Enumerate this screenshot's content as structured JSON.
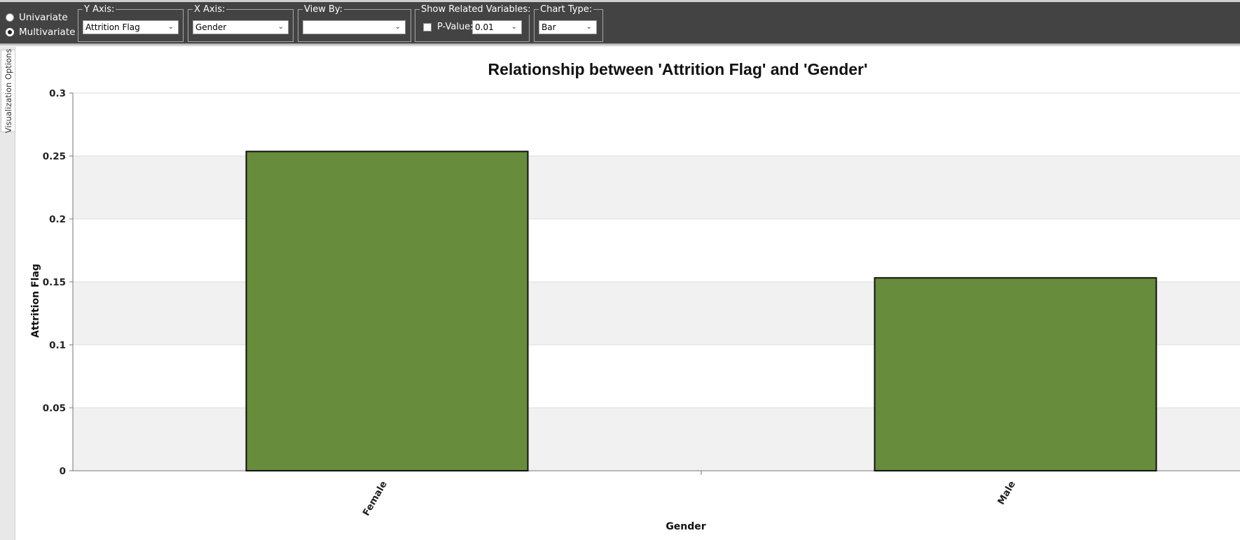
{
  "toolbar": {
    "mode_options": [
      {
        "label": "Univariate",
        "selected": false
      },
      {
        "label": "Multivariate",
        "selected": true
      }
    ],
    "y_axis": {
      "label": "Y Axis:",
      "value": "Attrition Flag"
    },
    "x_axis": {
      "label": "X Axis:",
      "value": "Gender"
    },
    "view_by": {
      "label": "View By:",
      "value": ""
    },
    "related": {
      "label": "Show Related Variables:",
      "checked": false,
      "pvalue_label": "P-Value:",
      "pvalue": "0.01"
    },
    "chart_type": {
      "label": "Chart Type:",
      "value": "Bar"
    }
  },
  "side_tab": {
    "label": "Visualization Options"
  },
  "colors": {
    "toolbar_bg": "#434343",
    "bar_fill": "#668c3c",
    "bar_stroke": "#111111",
    "band": "#f1f1f1"
  },
  "chart_data": {
    "type": "bar",
    "title": "Relationship between 'Attrition Flag' and 'Gender'",
    "xlabel": "Gender",
    "ylabel": "Attrition Flag",
    "categories": [
      "Female",
      "Male"
    ],
    "values": [
      0.2536,
      0.1532
    ],
    "ylim": [
      0,
      0.3
    ],
    "yticks": [
      "0",
      "0.05",
      "0.1",
      "0.15",
      "0.2",
      "0.25",
      "0.3"
    ],
    "grid": true
  }
}
